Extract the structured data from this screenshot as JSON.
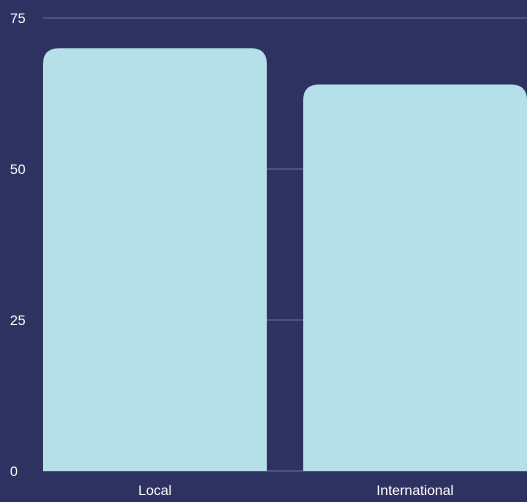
{
  "colors": {
    "background": "#2e3261",
    "bar": "#b6e0e7",
    "grid": "#6a6f9e",
    "text": "#ffffff"
  },
  "chart_data": {
    "type": "bar",
    "title": "",
    "xlabel": "",
    "ylabel": "",
    "categories": [
      "Local",
      "International"
    ],
    "values": [
      70,
      64
    ],
    "ylim": [
      0,
      75
    ],
    "yticks": [
      "0",
      "25",
      "50",
      "75"
    ],
    "grid": true,
    "legend": "none"
  }
}
